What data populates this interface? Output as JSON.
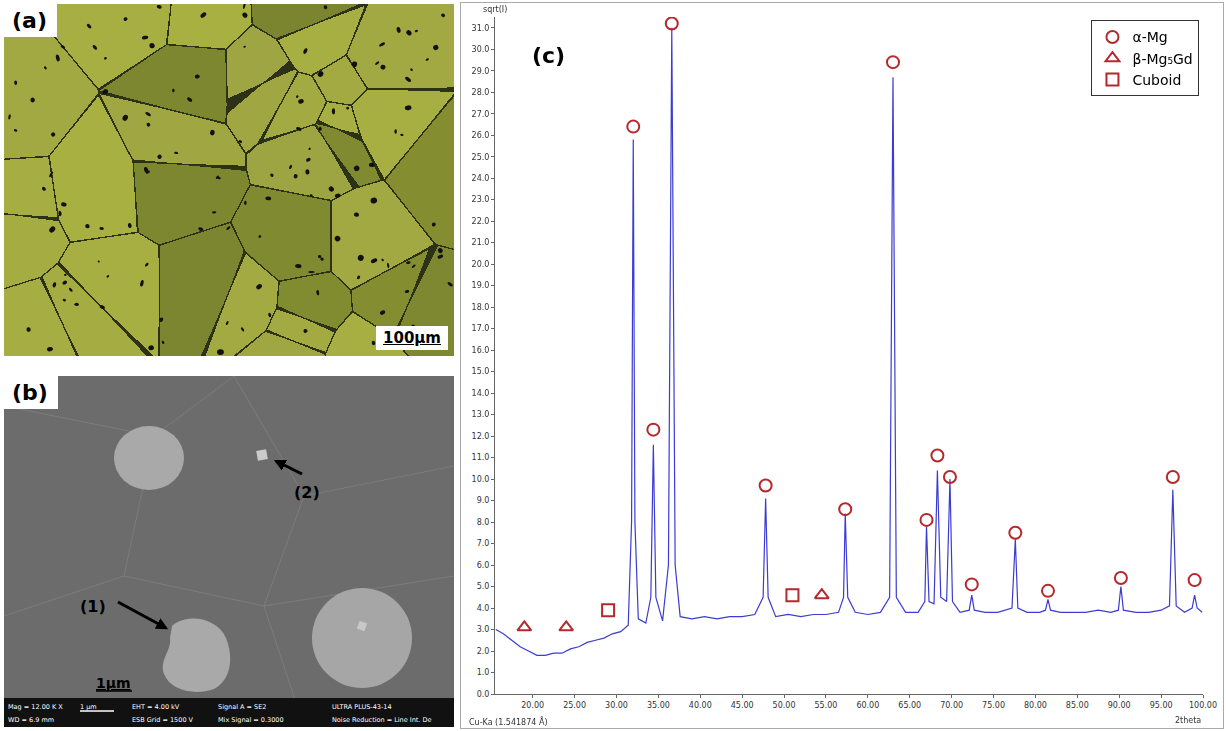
{
  "chart_data": {
    "type": "line",
    "title": "(c)",
    "y_label": "sqrt(I)",
    "x_label": "2theta",
    "annotations": [
      "Cu-Ka (1.541874 Å)"
    ],
    "xlim": [
      15.5,
      100
    ],
    "ylim": [
      0,
      31.5
    ],
    "xticks": [
      {
        "value": 20,
        "label": "20.00"
      },
      {
        "value": 25,
        "label": "25.00"
      },
      {
        "value": 30,
        "label": "30.00"
      },
      {
        "value": 35,
        "label": "35.00"
      },
      {
        "value": 40,
        "label": "40.00"
      },
      {
        "value": 45,
        "label": "45.00"
      },
      {
        "value": 50,
        "label": "50.00"
      },
      {
        "value": 55,
        "label": "55.00"
      },
      {
        "value": 60,
        "label": "60.00"
      },
      {
        "value": 65,
        "label": "65.00"
      },
      {
        "value": 70,
        "label": "70.00"
      },
      {
        "value": 75,
        "label": "75.00"
      },
      {
        "value": 80,
        "label": "80.00"
      },
      {
        "value": 85,
        "label": "85.00"
      },
      {
        "value": 90,
        "label": "90.00"
      },
      {
        "value": 95,
        "label": "95.00"
      },
      {
        "value": 100,
        "label": "100.00"
      }
    ],
    "yticks": [
      {
        "value": 0,
        "label": "0.0"
      },
      {
        "value": 1,
        "label": "1.0"
      },
      {
        "value": 2,
        "label": "2.0"
      },
      {
        "value": 3,
        "label": "3.0"
      },
      {
        "value": 4,
        "label": "4.0"
      },
      {
        "value": 5,
        "label": "5.0"
      },
      {
        "value": 6,
        "label": "6.0"
      },
      {
        "value": 7,
        "label": "7.0"
      },
      {
        "value": 8,
        "label": "8.0"
      },
      {
        "value": 9,
        "label": "9.0"
      },
      {
        "value": 10,
        "label": "10.0"
      },
      {
        "value": 11,
        "label": "11.0"
      },
      {
        "value": 12,
        "label": "12.0"
      },
      {
        "value": 13,
        "label": "13.0"
      },
      {
        "value": 14,
        "label": "14.0"
      },
      {
        "value": 15,
        "label": "15.0"
      },
      {
        "value": 16,
        "label": "16.0"
      },
      {
        "value": 17,
        "label": "17.0"
      },
      {
        "value": 18,
        "label": "18.0"
      },
      {
        "value": 19,
        "label": "19.0"
      },
      {
        "value": 20,
        "label": "20.0"
      },
      {
        "value": 21,
        "label": "21.0"
      },
      {
        "value": 22,
        "label": "22.0"
      },
      {
        "value": 23,
        "label": "23.0"
      },
      {
        "value": 24,
        "label": "24.0"
      },
      {
        "value": 25,
        "label": "25.0"
      },
      {
        "value": 26,
        "label": "26.0"
      },
      {
        "value": 27,
        "label": "27.0"
      },
      {
        "value": 28,
        "label": "28.0"
      },
      {
        "value": 29,
        "label": "29.0"
      },
      {
        "value": 30,
        "label": "30.0"
      },
      {
        "value": 31,
        "label": "31.0"
      }
    ],
    "grid": false,
    "legend": "upper right",
    "series": [
      {
        "type": "line",
        "color": "#3c3cd2",
        "x": [
          15.6,
          16.5,
          17.5,
          18.5,
          19.5,
          20.5,
          21.5,
          22.5,
          23.5,
          24.5,
          25.5,
          26.5,
          27.5,
          28.5,
          29.5,
          30.5,
          31.4,
          31.8,
          32.0,
          32.2,
          32.6,
          33.5,
          34.1,
          34.4,
          34.7,
          35.5,
          36.2,
          36.6,
          37.0,
          37.6,
          39,
          40.5,
          42,
          43.5,
          45,
          46.5,
          47.5,
          47.8,
          48.1,
          49,
          50.5,
          52,
          53.5,
          55,
          56.5,
          57.1,
          57.3,
          57.6,
          58.5,
          60,
          61.5,
          62.6,
          63.0,
          63.4,
          64.5,
          66,
          66.8,
          67.0,
          67.3,
          67.9,
          68.3,
          68.7,
          69.4,
          69.8,
          70.1,
          71,
          72.1,
          72.4,
          72.7,
          74,
          75.5,
          77.2,
          77.6,
          77.9,
          79,
          80.5,
          81.2,
          81.5,
          81.8,
          83,
          84.5,
          86,
          87.5,
          89,
          89.9,
          90.2,
          90.5,
          92,
          93.5,
          95,
          96.0,
          96.4,
          96.8,
          97.8,
          98.7,
          99.0,
          99.3,
          99.9
        ],
        "values": [
          3.0,
          2.8,
          2.5,
          2.2,
          2.0,
          1.8,
          1.8,
          1.9,
          1.9,
          2.1,
          2.2,
          2.4,
          2.5,
          2.6,
          2.8,
          2.9,
          3.2,
          8.0,
          25.8,
          8.0,
          3.5,
          3.3,
          4.5,
          11.6,
          4.5,
          3.4,
          6.0,
          31.0,
          6.0,
          3.6,
          3.5,
          3.6,
          3.5,
          3.6,
          3.6,
          3.7,
          4.5,
          9.1,
          4.5,
          3.6,
          3.7,
          3.6,
          3.7,
          3.7,
          3.8,
          4.5,
          8.4,
          4.5,
          3.8,
          3.7,
          3.8,
          4.5,
          28.7,
          4.5,
          3.8,
          3.8,
          4.3,
          7.8,
          4.3,
          4.2,
          10.4,
          4.5,
          4.3,
          10.0,
          4.3,
          3.8,
          3.9,
          4.6,
          3.9,
          3.8,
          3.8,
          4.0,
          7.2,
          4.0,
          3.8,
          3.8,
          3.9,
          4.4,
          3.9,
          3.8,
          3.8,
          3.8,
          3.9,
          3.8,
          3.9,
          5.0,
          3.9,
          3.8,
          3.8,
          3.9,
          4.1,
          9.5,
          4.1,
          3.8,
          4.0,
          4.6,
          4.0,
          3.8
        ]
      },
      {
        "name": "α-Mg",
        "type": "scatter",
        "marker": "circle",
        "color": "#b5282c",
        "x": [
          32.0,
          34.4,
          36.6,
          47.8,
          57.3,
          63.0,
          67.0,
          68.3,
          69.8,
          72.4,
          77.6,
          81.5,
          90.2,
          96.4,
          99.0
        ],
        "values": [
          26.4,
          12.3,
          31.2,
          9.7,
          8.6,
          29.4,
          8.1,
          11.1,
          10.1,
          5.1,
          7.5,
          4.8,
          5.4,
          10.1,
          5.3
        ]
      },
      {
        "name": "β-Mg₅Gd",
        "type": "scatter",
        "marker": "triangle-up",
        "color": "#b5282c",
        "x": [
          19.0,
          24.0,
          54.5
        ],
        "values": [
          3.1,
          3.1,
          4.6
        ]
      },
      {
        "name": "Cuboid",
        "type": "scatter",
        "marker": "square",
        "color": "#b5282c",
        "x": [
          29.0,
          51.0
        ],
        "values": [
          3.9,
          4.6
        ]
      }
    ]
  },
  "panels": {
    "a": {
      "label": "(a)",
      "scale_bar": "100μm"
    },
    "b": {
      "label": "(b)",
      "scale_bar": "1μm",
      "arrows": [
        "(1)",
        "(2)"
      ],
      "info_bar": [
        [
          "Mag = 12.00 K X",
          "1 μm",
          "EHT = 4.00 kV",
          "Signal A = SE2",
          "ULTRA PLUS-43-14"
        ],
        [
          "WD = 6.9 mm",
          "ESB Grid = 1500 V",
          "Mix Signal = 0.3000",
          "Noise Reduction = Line Int. De"
        ]
      ]
    }
  }
}
